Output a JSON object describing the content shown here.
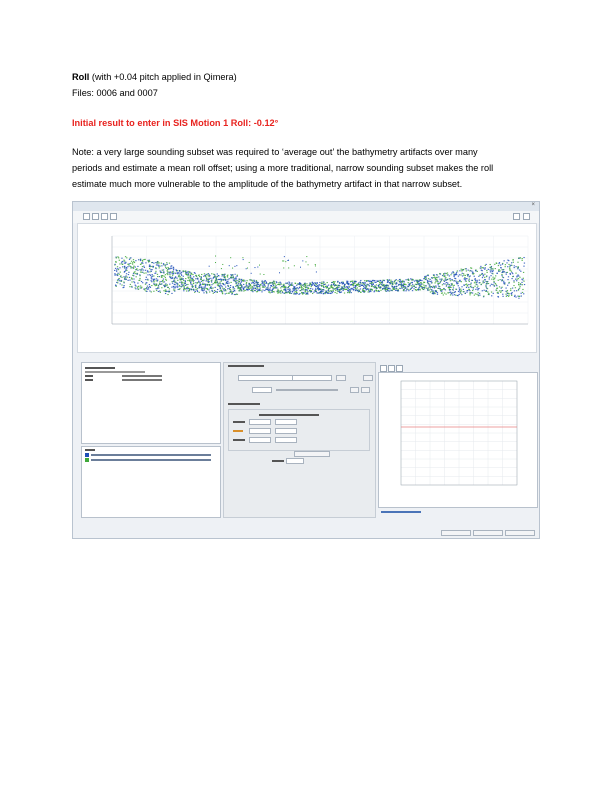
{
  "doc": {
    "heading_bold": "Roll",
    "heading_rest": " (with +0.04 pitch applied in Qimera)",
    "files": "Files: 0006 and 0007",
    "result": "Initial result to enter in SIS Motion 1 Roll: -0.12°",
    "note_line1": "Note: a very large sounding subset was required to ‘average out’ the bathymetry artifacts over many",
    "note_line2": "periods and estimate a mean roll offset; using a more traditional, narrow sounding subset makes the roll",
    "note_line3": "estimate much more vulnerable to the amplitude of the bathymetry artifact in that narrow subset."
  },
  "colors": {
    "result_red": "#e8231f",
    "sounding_blue": "#1f4fb8",
    "sounding_green": "#3fa83a",
    "zero_line_red": "#e98080"
  },
  "screenshot": {
    "icons": [
      "home-icon",
      "zoom-icon",
      "pan-icon",
      "select-icon"
    ]
  }
}
